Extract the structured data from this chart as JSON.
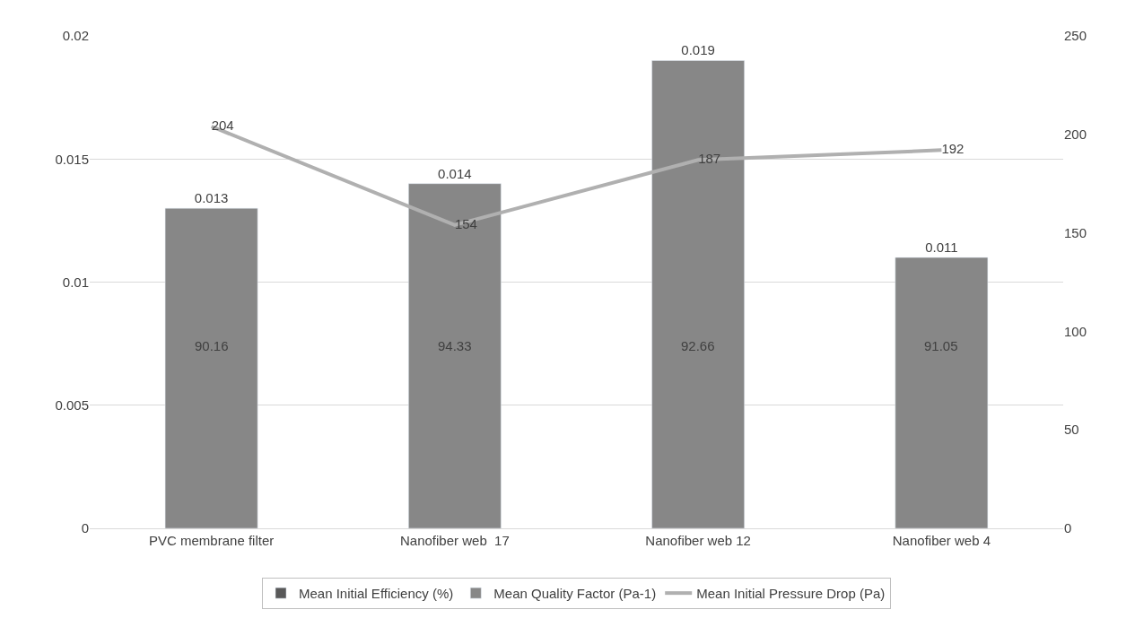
{
  "chart_data": {
    "type": "bar",
    "categories": [
      "PVC membrane filter",
      "Nanofiber web  17",
      "Nanofiber web 12",
      "Nanofiber web 4"
    ],
    "series": [
      {
        "name": "Mean Initial Efficiency (%)",
        "color": "#595959",
        "values": [
          null,
          null,
          null,
          null
        ]
      },
      {
        "name": "Mean Quality Factor (Pa-1)",
        "color": "#878787",
        "values": [
          0.013,
          0.014,
          0.019,
          0.011
        ],
        "value_labels": [
          "0.013",
          "0.014",
          "0.019",
          "0.011"
        ]
      },
      {
        "name": "Mean Initial Pressure Drop (Pa)",
        "type": "line",
        "axis": "y2",
        "color": "#b0b0b0",
        "values": [
          204,
          154,
          187,
          192
        ],
        "value_labels": [
          "204",
          "154",
          "187",
          "192"
        ],
        "marker": "none"
      }
    ],
    "annotations": [
      "90.16",
      "94.33",
      "92.66",
      "91.05"
    ],
    "ylim": [
      0,
      0.02
    ],
    "yticks": [
      0,
      0.005,
      0.01,
      0.015,
      0.02
    ],
    "y2lim": [
      0,
      250
    ],
    "y2ticks": [
      0,
      50,
      100,
      150,
      200,
      250
    ],
    "grid": "y",
    "legend": "bottom"
  }
}
